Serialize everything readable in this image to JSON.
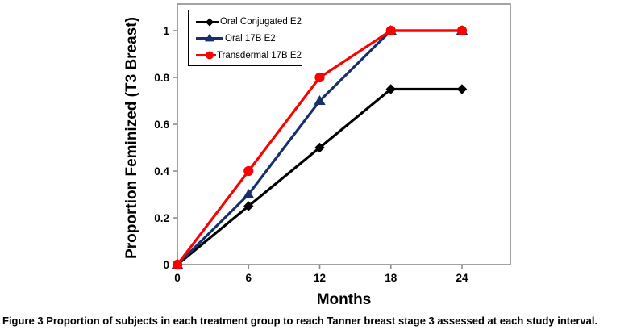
{
  "figure": {
    "caption_label": "Figure 3",
    "caption_text": "Proportion of subjects in each treatment group to reach Tanner breast stage 3 assessed at each study interval."
  },
  "chart_data": {
    "type": "line",
    "title": "",
    "xlabel": "Months",
    "ylabel": "Proportion Feminized (T3 Breast)",
    "x": [
      0,
      6,
      12,
      18,
      24
    ],
    "xticks": [
      0,
      6,
      12,
      18,
      24
    ],
    "xtick_labels": [
      "0",
      "6",
      "12",
      "18",
      "24"
    ],
    "yticks": [
      0,
      0.2,
      0.4,
      0.6,
      0.8,
      1
    ],
    "ytick_labels": [
      "0",
      "0.2",
      "0.4",
      "0.6",
      "0.8",
      "1"
    ],
    "xlim": [
      0,
      28
    ],
    "ylim": [
      0,
      1.11
    ],
    "grid": false,
    "legend_position": "top-left-inside",
    "axis_color": "#8c8c8c",
    "text_color": "#000000",
    "series": [
      {
        "name": "Oral Conjugated E2",
        "color": "#000000",
        "marker": "diamond",
        "values": [
          0,
          0.25,
          0.5,
          0.75,
          0.75
        ]
      },
      {
        "name": "Oral 17B E2",
        "color": "#16306e",
        "marker": "triangle",
        "values": [
          0,
          0.3,
          0.7,
          1.0,
          1.0
        ]
      },
      {
        "name": "Transdermal 17B E2",
        "color": "#fe0000",
        "marker": "circle",
        "values": [
          0,
          0.4,
          0.8,
          1.0,
          1.0
        ]
      }
    ]
  }
}
